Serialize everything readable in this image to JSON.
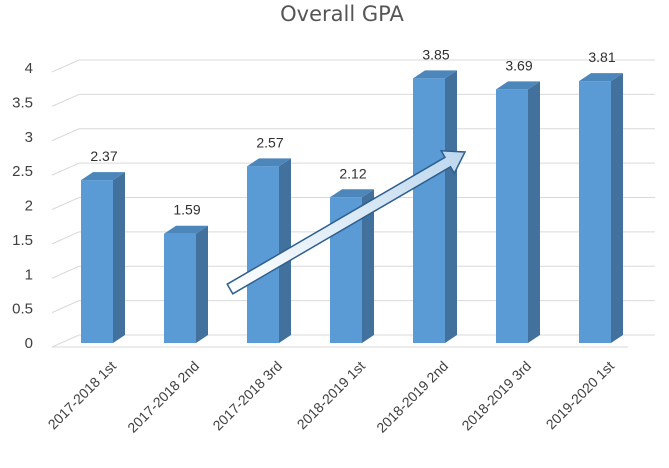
{
  "chart_data": {
    "type": "bar",
    "title": "Overall GPA",
    "categories": [
      "2017-2018 1st",
      "2017-2018 2nd",
      "2017-2018 3rd",
      "2018-2019 1st",
      "2018-2019 2nd",
      "2018-2019 3rd",
      "2019-2020 1st"
    ],
    "values": [
      2.37,
      1.59,
      2.57,
      2.12,
      3.85,
      3.69,
      3.81
    ],
    "value_labels": [
      "2.37",
      "1.59",
      "2.57",
      "2.12",
      "3.85",
      "3.69",
      "3.81"
    ],
    "y_ticks": [
      "0",
      "0.5",
      "1",
      "1.5",
      "2",
      "2.5",
      "3",
      "3.5",
      "4"
    ],
    "ylim": [
      0,
      4
    ],
    "grid": true,
    "legend": "none",
    "style": "3d-column",
    "trend_arrow": "upward"
  },
  "colors": {
    "bar_front": "#5B9BD5",
    "bar_side": "#41719C",
    "bar_top": "#4D86BA",
    "grid": "#D9D9D9",
    "arrow_edge": "#2E5F8F"
  }
}
